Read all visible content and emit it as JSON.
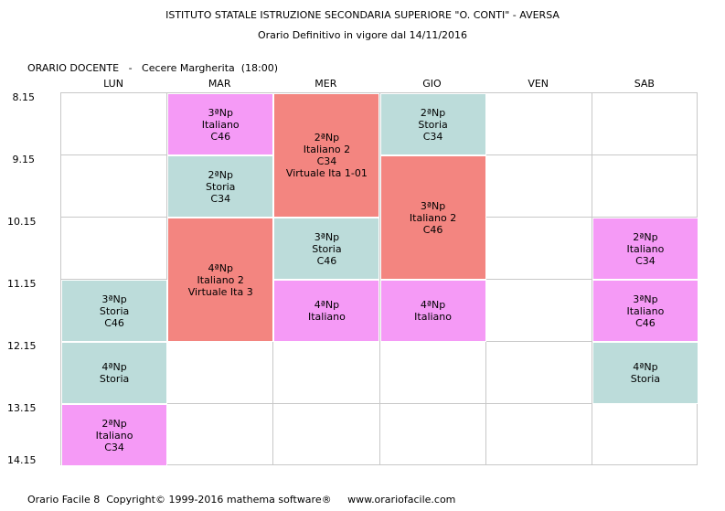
{
  "header": {
    "school": "ISTITUTO STATALE ISTRUZIONE SECONDARIA SUPERIORE \"O. CONTI\" - AVERSA",
    "subtitle": "Orario Definitivo in vigore dal 14/11/2016"
  },
  "teacher_line": "ORARIO DOCENTE   -   Cecere Margherita  (18:00)",
  "days": [
    "LUN",
    "MAR",
    "MER",
    "GIO",
    "VEN",
    "SAB"
  ],
  "times": [
    "8.15",
    "9.15",
    "10.15",
    "11.15",
    "12.15",
    "13.15",
    "14.15"
  ],
  "legend_colors": {
    "italiano": "#f59af6",
    "storia": "#bcdcda",
    "italiano2": "#f38580"
  },
  "lessons": [
    {
      "day": 0,
      "start": 3,
      "span": 1,
      "type": "sto",
      "lines": [
        "3ªNp",
        "Storia",
        "C46"
      ]
    },
    {
      "day": 0,
      "start": 4,
      "span": 1,
      "type": "sto",
      "lines": [
        "4ªNp",
        "Storia"
      ]
    },
    {
      "day": 0,
      "start": 5,
      "span": 1,
      "type": "ita",
      "lines": [
        "2ªNp",
        "Italiano",
        "C34"
      ]
    },
    {
      "day": 1,
      "start": 0,
      "span": 1,
      "type": "ita",
      "lines": [
        "3ªNp",
        "Italiano",
        "C46"
      ]
    },
    {
      "day": 1,
      "start": 1,
      "span": 1,
      "type": "sto",
      "lines": [
        "2ªNp",
        "Storia",
        "C34"
      ]
    },
    {
      "day": 1,
      "start": 2,
      "span": 2,
      "type": "ita2",
      "lines": [
        "4ªNp",
        "Italiano 2",
        "Virtuale Ita 3"
      ]
    },
    {
      "day": 2,
      "start": 0,
      "span": 2,
      "type": "ita2",
      "lines": [
        "2ªNp",
        "Italiano 2",
        "C34",
        "Virtuale Ita 1-01"
      ]
    },
    {
      "day": 2,
      "start": 2,
      "span": 1,
      "type": "sto",
      "lines": [
        "3ªNp",
        "Storia",
        "C46"
      ]
    },
    {
      "day": 2,
      "start": 3,
      "span": 1,
      "type": "ita",
      "lines": [
        "4ªNp",
        "Italiano"
      ]
    },
    {
      "day": 3,
      "start": 0,
      "span": 1,
      "type": "sto",
      "lines": [
        "2ªNp",
        "Storia",
        "C34"
      ]
    },
    {
      "day": 3,
      "start": 1,
      "span": 2,
      "type": "ita2",
      "lines": [
        "3ªNp",
        "Italiano 2",
        "C46"
      ]
    },
    {
      "day": 3,
      "start": 3,
      "span": 1,
      "type": "ita",
      "lines": [
        "4ªNp",
        "Italiano"
      ]
    },
    {
      "day": 5,
      "start": 2,
      "span": 1,
      "type": "ita",
      "lines": [
        "2ªNp",
        "Italiano",
        "C34"
      ]
    },
    {
      "day": 5,
      "start": 3,
      "span": 1,
      "type": "ita",
      "lines": [
        "3ªNp",
        "Italiano",
        "C46"
      ]
    },
    {
      "day": 5,
      "start": 4,
      "span": 1,
      "type": "sto",
      "lines": [
        "4ªNp",
        "Storia"
      ]
    }
  ],
  "footer": "Orario Facile 8  Copyright© 1999-2016 mathema software®     www.orariofacile.com"
}
